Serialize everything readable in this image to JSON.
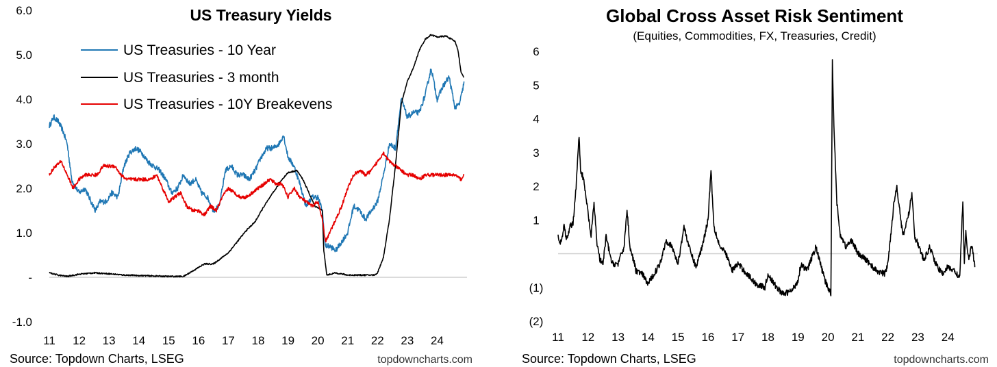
{
  "chart_data": [
    {
      "type": "line",
      "title": "US Treasury Yields",
      "x_ticks": [
        "11",
        "12",
        "13",
        "14",
        "15",
        "16",
        "17",
        "18",
        "19",
        "20",
        "21",
        "22",
        "23",
        "24"
      ],
      "y_ticks": [
        "6.0",
        "5.0",
        "4.0",
        "3.0",
        "2.0",
        "1.0",
        "-",
        "-1.0"
      ],
      "ylim": [
        -1,
        6
      ],
      "xlim": [
        2011.0,
        2025.0
      ],
      "series": [
        {
          "name": "US Treasuries - 10 Year",
          "color": "#1f77b4",
          "x": [
            2011.0,
            2011.15,
            2011.3,
            2011.45,
            2011.6,
            2011.75,
            2011.9,
            2012.0,
            2012.2,
            2012.4,
            2012.55,
            2012.7,
            2012.9,
            2013.1,
            2013.3,
            2013.5,
            2013.7,
            2013.9,
            2014.1,
            2014.3,
            2014.5,
            2014.7,
            2014.9,
            2015.1,
            2015.3,
            2015.5,
            2015.7,
            2015.9,
            2016.1,
            2016.3,
            2016.5,
            2016.7,
            2016.9,
            2017.1,
            2017.3,
            2017.5,
            2017.7,
            2017.9,
            2018.1,
            2018.3,
            2018.5,
            2018.7,
            2018.85,
            2019.0,
            2019.2,
            2019.4,
            2019.6,
            2019.8,
            2020.0,
            2020.15,
            2020.25,
            2020.4,
            2020.6,
            2020.8,
            2021.0,
            2021.2,
            2021.4,
            2021.6,
            2021.8,
            2022.0,
            2022.2,
            2022.4,
            2022.6,
            2022.8,
            2023.0,
            2023.2,
            2023.4,
            2023.6,
            2023.8,
            2024.0,
            2024.2,
            2024.4,
            2024.6,
            2024.75,
            2024.85,
            2024.9
          ],
          "values": [
            3.4,
            3.6,
            3.5,
            3.3,
            3.0,
            2.2,
            2.0,
            1.9,
            2.0,
            1.7,
            1.5,
            1.7,
            1.7,
            1.9,
            1.8,
            2.5,
            2.8,
            2.9,
            2.8,
            2.6,
            2.5,
            2.4,
            2.2,
            1.9,
            2.0,
            2.3,
            2.1,
            2.2,
            1.9,
            1.8,
            1.5,
            1.6,
            2.4,
            2.5,
            2.3,
            2.3,
            2.2,
            2.4,
            2.7,
            2.9,
            2.9,
            3.0,
            3.2,
            2.7,
            2.5,
            2.1,
            1.6,
            1.8,
            1.8,
            1.5,
            0.7,
            0.7,
            0.6,
            0.8,
            1.0,
            1.6,
            1.5,
            1.3,
            1.5,
            1.7,
            2.3,
            3.0,
            2.9,
            4.0,
            3.6,
            3.7,
            3.7,
            4.1,
            4.7,
            4.0,
            4.3,
            4.5,
            3.8,
            3.9,
            4.2,
            4.4
          ]
        },
        {
          "name": "US Treasuries - 3 month",
          "color": "#000000",
          "x": [
            2011.0,
            2011.3,
            2011.6,
            2012.0,
            2012.5,
            2013.0,
            2013.5,
            2014.0,
            2014.5,
            2015.0,
            2015.5,
            2015.95,
            2016.2,
            2016.5,
            2016.8,
            2017.0,
            2017.3,
            2017.6,
            2017.9,
            2018.2,
            2018.5,
            2018.8,
            2019.0,
            2019.3,
            2019.5,
            2019.7,
            2019.9,
            2020.05,
            2020.15,
            2020.2,
            2020.3,
            2020.6,
            2021.0,
            2021.5,
            2021.9,
            2022.0,
            2022.2,
            2022.4,
            2022.6,
            2022.8,
            2023.0,
            2023.2,
            2023.4,
            2023.6,
            2023.8,
            2024.0,
            2024.3,
            2024.6,
            2024.7,
            2024.8,
            2024.9
          ],
          "values": [
            0.1,
            0.05,
            0.02,
            0.07,
            0.1,
            0.08,
            0.05,
            0.04,
            0.03,
            0.02,
            0.02,
            0.2,
            0.3,
            0.3,
            0.45,
            0.55,
            0.8,
            1.05,
            1.25,
            1.6,
            1.9,
            2.2,
            2.35,
            2.4,
            2.2,
            1.9,
            1.6,
            1.55,
            1.5,
            0.6,
            0.05,
            0.1,
            0.05,
            0.05,
            0.05,
            0.1,
            0.45,
            1.3,
            2.5,
            3.9,
            4.4,
            4.7,
            5.1,
            5.35,
            5.45,
            5.4,
            5.42,
            5.3,
            5.1,
            4.6,
            4.5
          ]
        },
        {
          "name": "US Treasuries - 10Y Breakevens",
          "color": "#e60000",
          "x": [
            2011.0,
            2011.2,
            2011.4,
            2011.6,
            2011.8,
            2012.0,
            2012.2,
            2012.4,
            2012.6,
            2012.8,
            2013.0,
            2013.2,
            2013.4,
            2013.6,
            2013.8,
            2014.0,
            2014.2,
            2014.4,
            2014.6,
            2014.8,
            2015.0,
            2015.2,
            2015.4,
            2015.6,
            2015.8,
            2016.0,
            2016.2,
            2016.4,
            2016.6,
            2016.8,
            2017.0,
            2017.2,
            2017.4,
            2017.6,
            2017.8,
            2018.0,
            2018.2,
            2018.4,
            2018.6,
            2018.8,
            2019.0,
            2019.2,
            2019.4,
            2019.6,
            2019.8,
            2020.0,
            2020.15,
            2020.25,
            2020.4,
            2020.6,
            2020.8,
            2021.0,
            2021.2,
            2021.4,
            2021.6,
            2021.8,
            2022.0,
            2022.2,
            2022.4,
            2022.6,
            2022.8,
            2023.0,
            2023.2,
            2023.4,
            2023.6,
            2023.8,
            2024.0,
            2024.2,
            2024.4,
            2024.6,
            2024.8,
            2024.9
          ],
          "values": [
            2.3,
            2.5,
            2.6,
            2.3,
            2.0,
            2.2,
            2.3,
            2.3,
            2.3,
            2.5,
            2.5,
            2.5,
            2.3,
            2.2,
            2.2,
            2.2,
            2.2,
            2.2,
            2.3,
            2.0,
            1.7,
            1.8,
            1.9,
            1.6,
            1.5,
            1.5,
            1.4,
            1.6,
            1.5,
            1.8,
            2.0,
            1.9,
            1.8,
            1.8,
            1.9,
            2.0,
            2.1,
            2.2,
            2.1,
            2.1,
            1.8,
            2.0,
            1.8,
            1.7,
            1.6,
            1.7,
            1.3,
            0.8,
            1.0,
            1.3,
            1.6,
            2.0,
            2.3,
            2.4,
            2.3,
            2.4,
            2.6,
            2.8,
            2.6,
            2.5,
            2.4,
            2.3,
            2.3,
            2.2,
            2.3,
            2.3,
            2.3,
            2.3,
            2.3,
            2.3,
            2.2,
            2.3
          ]
        }
      ],
      "source": "Source: Topdown Charts, LSEG",
      "watermark": "topdowncharts.com"
    },
    {
      "type": "line",
      "title": "Global Cross Asset Risk Sentiment",
      "subtitle": "(Equities, Commodities, FX, Treasuries, Credit)",
      "x_ticks": [
        "11",
        "12",
        "13",
        "14",
        "15",
        "16",
        "17",
        "18",
        "19",
        "20",
        "21",
        "22",
        "23",
        "24"
      ],
      "y_ticks": [
        "6",
        "5",
        "4",
        "3",
        "2",
        "1",
        "(1)",
        "(2)"
      ],
      "y_tick_values": [
        6,
        5,
        4,
        3,
        2,
        1,
        -1,
        -2
      ],
      "ylim": [
        -2,
        6
      ],
      "xlim": [
        2011.0,
        2025.0
      ],
      "reference_line": 0,
      "series": [
        {
          "name": "Global Cross Asset Risk Sentiment",
          "color": "#000000",
          "x": [
            2011.0,
            2011.1,
            2011.2,
            2011.3,
            2011.4,
            2011.5,
            2011.6,
            2011.7,
            2011.75,
            2011.85,
            2012.0,
            2012.1,
            2012.2,
            2012.3,
            2012.4,
            2012.5,
            2012.6,
            2012.8,
            2013.0,
            2013.2,
            2013.3,
            2013.4,
            2013.6,
            2013.8,
            2014.0,
            2014.2,
            2014.4,
            2014.6,
            2014.8,
            2015.0,
            2015.2,
            2015.4,
            2015.6,
            2015.8,
            2016.0,
            2016.1,
            2016.2,
            2016.4,
            2016.6,
            2016.8,
            2017.0,
            2017.3,
            2017.6,
            2017.9,
            2018.0,
            2018.2,
            2018.5,
            2018.8,
            2019.0,
            2019.1,
            2019.3,
            2019.6,
            2019.9,
            2020.0,
            2020.1,
            2020.15,
            2020.2,
            2020.3,
            2020.4,
            2020.6,
            2020.8,
            2021.0,
            2021.3,
            2021.6,
            2021.9,
            2022.0,
            2022.2,
            2022.3,
            2022.5,
            2022.7,
            2022.8,
            2022.9,
            2023.0,
            2023.2,
            2023.4,
            2023.6,
            2023.8,
            2024.0,
            2024.2,
            2024.4,
            2024.5,
            2024.55,
            2024.6,
            2024.7,
            2024.8,
            2024.9
          ],
          "values": [
            0.5,
            0.3,
            0.8,
            0.4,
            0.8,
            0.9,
            2.0,
            3.5,
            2.5,
            2.2,
            1.2,
            0.5,
            1.5,
            0.3,
            -0.2,
            -0.3,
            0.5,
            -0.3,
            -0.3,
            0.2,
            1.3,
            0.2,
            -0.5,
            -0.6,
            -0.9,
            -0.6,
            -0.3,
            0.4,
            0.2,
            -0.3,
            0.8,
            0.1,
            -0.4,
            0.2,
            1.0,
            2.5,
            0.8,
            0.2,
            0.0,
            -0.5,
            -0.3,
            -0.6,
            -0.9,
            -1.0,
            -0.6,
            -0.9,
            -1.2,
            -1.1,
            -0.8,
            -0.3,
            -0.5,
            0.2,
            -0.8,
            -1.0,
            -1.2,
            5.7,
            3.8,
            1.5,
            0.6,
            0.2,
            0.4,
            0.0,
            -0.2,
            -0.5,
            -0.6,
            -0.3,
            1.5,
            2.0,
            0.5,
            1.2,
            1.8,
            0.5,
            0.3,
            -0.2,
            0.2,
            -0.3,
            -0.6,
            -0.4,
            -0.5,
            -0.7,
            1.6,
            -0.3,
            0.6,
            -0.2,
            0.3,
            -0.4
          ]
        }
      ],
      "source": "Source: Topdown Charts, LSEG",
      "watermark": "topdowncharts.com"
    }
  ]
}
